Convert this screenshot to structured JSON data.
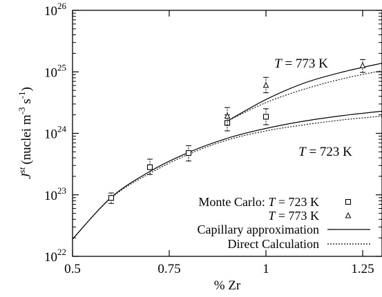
{
  "chart_data": {
    "type": "scatter",
    "xlabel": "% Zr",
    "ylabel": {
      "base": "J",
      "sup": "st",
      "units": "(nuclei m",
      "exp1": "-3",
      "mid": " s",
      "exp2": "-1",
      "close": ")"
    },
    "xlim": [
      0.5,
      1.3
    ],
    "ylim_log10": [
      22,
      26
    ],
    "log_y": true,
    "x_ticks": [
      {
        "value": 0.5,
        "label": "0.5"
      },
      {
        "value": 0.75,
        "label": "0.75"
      },
      {
        "value": 1.0,
        "label": "1"
      },
      {
        "value": 1.25,
        "label": "1.25"
      }
    ],
    "y_ticks": [
      {
        "exp": 22,
        "base": "10",
        "sup": "22"
      },
      {
        "exp": 23,
        "base": "10",
        "sup": "23"
      },
      {
        "exp": 24,
        "base": "10",
        "sup": "24"
      },
      {
        "exp": 25,
        "base": "10",
        "sup": "25"
      },
      {
        "exp": 26,
        "base": "10",
        "sup": "26"
      }
    ],
    "annotations": [
      {
        "id": "t773",
        "italic": "T",
        "rest": " = 773 K"
      },
      {
        "id": "t723",
        "italic": "T",
        "rest": " = 723 K"
      }
    ],
    "series": [
      {
        "name": "Monte Carlo: T = 723 K",
        "marker": "square",
        "points": [
          {
            "x": 0.6,
            "log10_y": 22.95,
            "log10_lo": 22.86,
            "log10_hi": 23.03
          },
          {
            "x": 0.7,
            "log10_y": 23.45,
            "log10_lo": 23.33,
            "log10_hi": 23.58
          },
          {
            "x": 0.8,
            "log10_y": 23.68,
            "log10_lo": 23.55,
            "log10_hi": 23.8
          },
          {
            "x": 0.9,
            "log10_y": 24.17,
            "log10_lo": 24.04,
            "log10_hi": 24.3
          },
          {
            "x": 1.0,
            "log10_y": 24.27,
            "log10_lo": 24.14,
            "log10_hi": 24.4
          }
        ]
      },
      {
        "name": "T = 773 K",
        "marker": "triangle",
        "points": [
          {
            "x": 0.9,
            "log10_y": 24.28,
            "log10_lo": 24.13,
            "log10_hi": 24.42
          },
          {
            "x": 1.0,
            "log10_y": 24.78,
            "log10_lo": 24.66,
            "log10_hi": 24.91
          },
          {
            "x": 1.25,
            "log10_y": 25.1,
            "log10_lo": 24.99,
            "log10_hi": 25.2
          }
        ]
      },
      {
        "name": "Capillary approximation",
        "style": "solid",
        "curves": [
          {
            "x": [
              0.5,
              0.6,
              0.7,
              0.8,
              0.9,
              1.0,
              1.1,
              1.2,
              1.3
            ],
            "log10_y": [
              22.28,
              22.96,
              23.38,
              23.69,
              23.92,
              24.08,
              24.2,
              24.29,
              24.36
            ]
          },
          {
            "x": [
              0.9,
              1.0,
              1.1,
              1.2,
              1.3
            ],
            "log10_y": [
              24.2,
              24.55,
              24.82,
              25.0,
              25.14
            ]
          }
        ]
      },
      {
        "name": "Direct Calculation",
        "style": "dotted",
        "curves": [
          {
            "x": [
              0.5,
              0.6,
              0.7,
              0.8,
              0.9,
              1.0,
              1.1,
              1.2,
              1.3
            ],
            "log10_y": [
              22.28,
              22.95,
              23.35,
              23.66,
              23.89,
              24.04,
              24.14,
              24.22,
              24.28
            ]
          },
          {
            "x": [
              0.9,
              1.0,
              1.1,
              1.2,
              1.3
            ],
            "log10_y": [
              24.2,
              24.5,
              24.72,
              24.89,
              25.02
            ]
          }
        ]
      }
    ],
    "legend": {
      "placement": "bottom-right",
      "entries": [
        {
          "prefix": "Monte Carlo: ",
          "italic": "T",
          "rest": " = 723 K",
          "marker": "square"
        },
        {
          "prefix": "",
          "italic": "T",
          "rest": " = 773 K",
          "marker": "triangle"
        },
        {
          "prefix": "Capillary approximation",
          "italic": "",
          "rest": "",
          "line": "solid"
        },
        {
          "prefix": "Direct Calculation",
          "italic": "",
          "rest": "",
          "line": "dotted"
        }
      ]
    }
  }
}
